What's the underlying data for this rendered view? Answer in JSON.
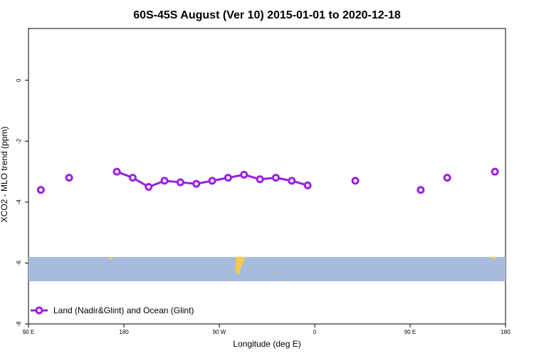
{
  "chart_data": {
    "type": "line",
    "title": "60S-45S August (Ver 10)   2015-01-01 to 2020-12-18",
    "xlabel": "Longitude (deg E)",
    "ylabel": "XCO2 - MLO trend (ppm)",
    "xlim": [
      -90,
      180
    ],
    "ylim": [
      -8,
      1.7
    ],
    "x_ticks": [
      {
        "value": -90,
        "label": "90 E"
      },
      {
        "value": -36,
        "label": "180"
      },
      {
        "value": 18,
        "label": "90 W"
      },
      {
        "value": 72,
        "label": "0"
      },
      {
        "value": 126,
        "label": "90 E"
      },
      {
        "value": 180,
        "label": "180"
      }
    ],
    "y_ticks": [
      {
        "value": 0,
        "label": "0"
      },
      {
        "value": -2,
        "label": "-2"
      },
      {
        "value": -4,
        "label": "-4"
      },
      {
        "value": -6,
        "label": "-6"
      },
      {
        "value": -8,
        "label": "-8"
      }
    ],
    "series": [
      {
        "name": "Land (Nadir&Glint) and Ocean (Glint)",
        "color": "#9b1fe0",
        "segments": [
          [
            {
              "x": -83,
              "y": -3.6
            }
          ],
          [
            {
              "x": -67,
              "y": -3.2
            }
          ],
          [
            {
              "x": -40,
              "y": -3.0
            },
            {
              "x": -31,
              "y": -3.2
            },
            {
              "x": -22,
              "y": -3.5
            },
            {
              "x": -13,
              "y": -3.3
            },
            {
              "x": -4,
              "y": -3.35
            },
            {
              "x": 5,
              "y": -3.4
            },
            {
              "x": 14,
              "y": -3.3
            },
            {
              "x": 23,
              "y": -3.2
            },
            {
              "x": 32,
              "y": -3.1
            },
            {
              "x": 41,
              "y": -3.25
            },
            {
              "x": 50,
              "y": -3.2
            },
            {
              "x": 59,
              "y": -3.3
            },
            {
              "x": 68,
              "y": -3.45
            }
          ],
          [
            {
              "x": 95,
              "y": -3.3
            }
          ],
          [
            {
              "x": 132,
              "y": -3.6
            }
          ],
          [
            {
              "x": 147,
              "y": -3.2
            }
          ],
          [
            {
              "x": 174,
              "y": -3.0
            }
          ]
        ]
      }
    ],
    "map_band": {
      "y_top": -5.8,
      "y_bottom": -6.6,
      "ocean_color": "#a6bcdc",
      "land_color": "#f7c94c"
    },
    "legend_position": "bottom-left",
    "grid": false
  }
}
